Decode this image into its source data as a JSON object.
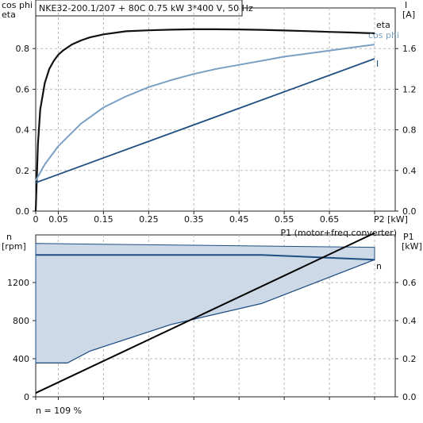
{
  "header": {
    "title": "NKE32-200.1/207 + 80C   0.75 kW   3*400 V, 50 Hz",
    "footnote": "n = 109 %"
  },
  "colors": {
    "eta": "#111111",
    "cos_phi": "#7aa0c4",
    "current": "#1f4e82",
    "speed": "#1f4e82",
    "speed_band_fill": "#cdd9e6",
    "p1": "#000000"
  },
  "chart_data": [
    {
      "type": "line",
      "ylabel_left": [
        "cos phi",
        "eta"
      ],
      "ylabel_right": [
        "I",
        "[A]"
      ],
      "xlabel": "P2 [kW]",
      "xlim": [
        0,
        0.75
      ],
      "ylim_left": [
        0,
        1.0
      ],
      "ylim_right": [
        0,
        2.0
      ],
      "x_ticks": [
        "0",
        "0.05",
        "0.15",
        "0.25",
        "0.35",
        "0.45",
        "0.55",
        "0.65",
        "P2 [kW]"
      ],
      "y_ticks_left": [
        "0.0",
        "0.2",
        "0.4",
        "0.6",
        "0.8"
      ],
      "y_ticks_right": [
        "0.0",
        "0.4",
        "0.8",
        "1.2",
        "1.6"
      ],
      "grid": true,
      "series": [
        {
          "name": "eta",
          "axis": "left",
          "x": [
            0.0,
            0.005,
            0.01,
            0.02,
            0.03,
            0.04,
            0.05,
            0.06,
            0.08,
            0.1,
            0.12,
            0.15,
            0.2,
            0.25,
            0.3,
            0.35,
            0.4,
            0.45,
            0.5,
            0.55,
            0.6,
            0.65,
            0.7,
            0.75
          ],
          "y": [
            0.0,
            0.33,
            0.5,
            0.63,
            0.7,
            0.74,
            0.77,
            0.79,
            0.82,
            0.84,
            0.855,
            0.87,
            0.885,
            0.89,
            0.893,
            0.895,
            0.895,
            0.894,
            0.892,
            0.889,
            0.886,
            0.882,
            0.879,
            0.875
          ]
        },
        {
          "name": "cos phi",
          "axis": "left",
          "x": [
            0.0,
            0.02,
            0.05,
            0.1,
            0.15,
            0.2,
            0.25,
            0.3,
            0.35,
            0.4,
            0.45,
            0.5,
            0.55,
            0.6,
            0.65,
            0.7,
            0.75
          ],
          "y": [
            0.15,
            0.23,
            0.32,
            0.43,
            0.51,
            0.565,
            0.61,
            0.645,
            0.675,
            0.7,
            0.72,
            0.74,
            0.76,
            0.775,
            0.79,
            0.805,
            0.82
          ]
        },
        {
          "name": "I",
          "axis": "right",
          "x": [
            0.0,
            0.75
          ],
          "y": [
            0.28,
            1.5
          ]
        }
      ]
    },
    {
      "type": "line",
      "ylabel_left": [
        "n",
        "[rpm]"
      ],
      "ylabel_right": [
        "P1",
        "[kW]"
      ],
      "xlim": [
        0,
        0.75
      ],
      "ylim_left": [
        0,
        1700
      ],
      "ylim_right": [
        0,
        0.85
      ],
      "y_ticks_left": [
        "0",
        "400",
        "800",
        "1200"
      ],
      "y_ticks_right": [
        "0.0",
        "0.2",
        "0.4",
        "0.6"
      ],
      "grid": true,
      "series": [
        {
          "name": "n",
          "axis": "left",
          "x": [
            0.0,
            0.07,
            0.12,
            0.3,
            0.5,
            0.75
          ],
          "y": [
            1490,
            1490,
            1490,
            1490,
            1490,
            1440
          ]
        },
        {
          "name": "n (lower limit)",
          "axis": "left",
          "x": [
            0.0,
            0.07,
            0.12,
            0.3,
            0.5,
            0.75
          ],
          "y": [
            355,
            355,
            480,
            760,
            980,
            1440
          ]
        },
        {
          "name": "n (upper limit)",
          "axis": "left",
          "x": [
            0.0,
            0.75
          ],
          "y": [
            1610,
            1570
          ]
        },
        {
          "name": "P1 (motor+freq.converter)",
          "axis": "right",
          "x": [
            0.0,
            0.75
          ],
          "y": [
            0.02,
            0.86
          ]
        }
      ],
      "labels": {
        "n": "n",
        "p1": "P1 (motor+freq.converter)"
      }
    }
  ]
}
